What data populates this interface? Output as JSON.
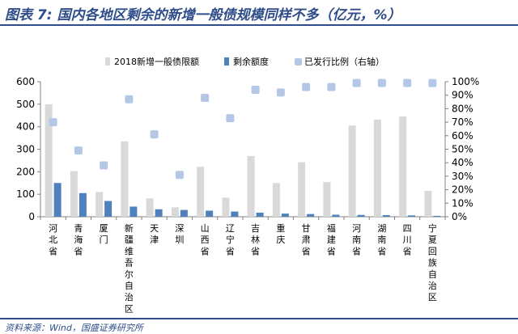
{
  "header": {
    "title": "图表 7:  国内各地区剩余的新增一般债规模同样不多（亿元，%）"
  },
  "footer": {
    "source": "资料来源：Wind，国盛证券研究所"
  },
  "chart_data": {
    "type": "bar",
    "title": "图表 7:  国内各地区剩余的新增一般债规模同样不多（亿元，%）",
    "categories": [
      "河北省",
      "青海省",
      "厦门",
      "新疆维吾尔自治区",
      "天津",
      "深圳",
      "山西省",
      "辽宁省",
      "吉林省",
      "重庆",
      "甘肃省",
      "福建省",
      "河南省",
      "湖南省",
      "四川省",
      "宁夏回族自治区"
    ],
    "series": [
      {
        "name": "2018新增一般债限额",
        "axis": "left",
        "kind": "bar",
        "color": "#d9d9d9",
        "values": [
          500,
          203,
          110,
          335,
          82,
          42,
          222,
          85,
          270,
          150,
          242,
          154,
          405,
          432,
          445,
          115
        ]
      },
      {
        "name": "剩余额度",
        "axis": "left",
        "kind": "bar",
        "color": "#4f81bd",
        "values": [
          150,
          105,
          70,
          45,
          33,
          30,
          27,
          23,
          18,
          14,
          12,
          9,
          8,
          7,
          6,
          4
        ]
      },
      {
        "name": "已发行比例（右轴）",
        "axis": "right",
        "kind": "scatter",
        "color": "#b4c7e7",
        "values": [
          70,
          49,
          38,
          87,
          61,
          31,
          88,
          73,
          94,
          92,
          96,
          96,
          99,
          99,
          99,
          99
        ]
      }
    ],
    "yleft": {
      "min": 0,
      "max": 600,
      "step": 100,
      "ticks": [
        "0",
        "100",
        "200",
        "300",
        "400",
        "500",
        "600"
      ]
    },
    "yright": {
      "min": 0,
      "max": 100,
      "step": 10,
      "ticks": [
        "0%",
        "10%",
        "20%",
        "30%",
        "40%",
        "50%",
        "60%",
        "70%",
        "80%",
        "90%",
        "100%"
      ]
    },
    "grid": false,
    "legend": "top"
  }
}
